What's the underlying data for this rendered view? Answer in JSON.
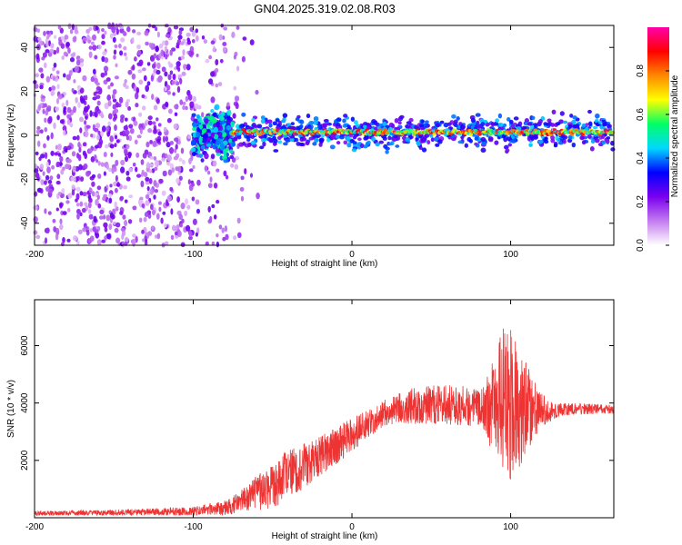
{
  "title": "GN04.2025.319.02.08.R03",
  "chart_data": [
    {
      "type": "heatmap",
      "name": "spectrogram",
      "xlabel": "Height of straight line (km)",
      "ylabel": "Frequency (Hz)",
      "xlim": [
        -200,
        165
      ],
      "ylim": [
        -50,
        50
      ],
      "xticks": [
        -200,
        -100,
        0,
        100
      ],
      "xtick_labels": [
        "-200",
        "-100",
        "0",
        "100"
      ],
      "yticks": [
        -40,
        -20,
        0,
        20,
        40
      ],
      "ytick_labels": [
        "-40",
        "-20",
        "0",
        "20",
        "40"
      ],
      "colorbar": {
        "label": "Normalized spectral amplitude",
        "range": [
          0,
          1
        ],
        "ticks": [
          0.0,
          0.2,
          0.4,
          0.6,
          0.8
        ],
        "tick_labels": [
          "0.0",
          "0.2",
          "0.4",
          "0.6",
          "0.8"
        ],
        "colors": [
          "#ffffff",
          "#c47cf0",
          "#7a00ee",
          "#0000ff",
          "#00d8ff",
          "#00ff66",
          "#ffff00",
          "#ff8800",
          "#ff0000",
          "#ff00aa"
        ]
      },
      "regions": [
        {
          "x_range": [
            -200,
            -80
          ],
          "description": "scattered noise",
          "freq_range": [
            -50,
            50
          ],
          "amplitude": [
            0.05,
            0.25
          ]
        },
        {
          "x_range": [
            -100,
            -75
          ],
          "description": "broad band",
          "freq_range": [
            -12,
            10
          ],
          "amplitude": [
            0.2,
            0.55
          ]
        },
        {
          "x_range": [
            -75,
            165
          ],
          "description": "carrier line",
          "freq_center": 1.5,
          "amplitude": [
            0.4,
            0.95
          ]
        }
      ]
    },
    {
      "type": "line",
      "name": "snr",
      "xlabel": "Height of straight line (km)",
      "ylabel": "SNR (10 * v/v)",
      "xlim": [
        -200,
        165
      ],
      "ylim": [
        0,
        7600
      ],
      "xticks": [
        -200,
        -100,
        0,
        100
      ],
      "xtick_labels": [
        "-200",
        "-100",
        "0",
        "100"
      ],
      "yticks": [
        2000,
        4000,
        6000
      ],
      "ytick_labels": [
        "2000",
        "4000",
        "6000"
      ],
      "color": "#ee3333",
      "series": [
        {
          "name": "SNR envelope",
          "x": [
            -200,
            -150,
            -100,
            -80,
            -70,
            -60,
            -50,
            -40,
            -30,
            -20,
            -10,
            0,
            10,
            20,
            30,
            40,
            50,
            60,
            70,
            80,
            85,
            90,
            95,
            100,
            105,
            110,
            115,
            120,
            125,
            130,
            140,
            150,
            165
          ],
          "mean": [
            150,
            180,
            230,
            350,
            550,
            850,
            1150,
            1500,
            1800,
            2150,
            2500,
            2900,
            3250,
            3650,
            3850,
            3900,
            3950,
            3950,
            3900,
            3850,
            3800,
            3950,
            4100,
            4050,
            3900,
            3850,
            3800,
            3700,
            3700,
            3750,
            3800,
            3800,
            3780
          ],
          "amp": [
            80,
            100,
            150,
            250,
            400,
            600,
            800,
            900,
            800,
            700,
            650,
            600,
            500,
            450,
            550,
            650,
            700,
            700,
            700,
            650,
            1100,
            1800,
            2500,
            2800,
            2200,
            1600,
            1000,
            600,
            350,
            250,
            200,
            180,
            150
          ]
        }
      ]
    }
  ]
}
